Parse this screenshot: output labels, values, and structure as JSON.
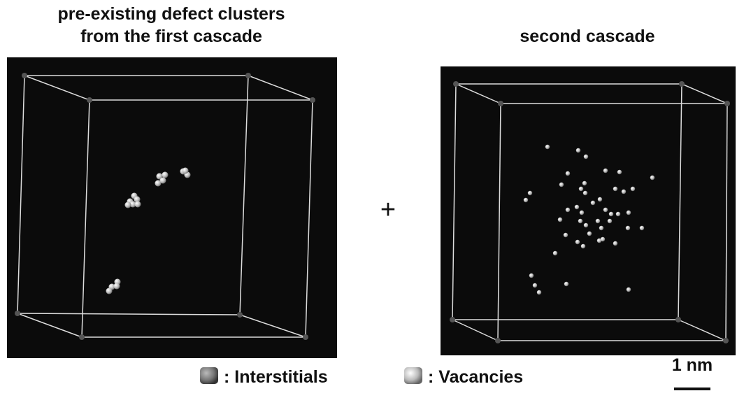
{
  "panels": [
    {
      "title": [
        "pre-existing defect clusters",
        "from the first cascade"
      ]
    },
    {
      "title": [
        "second cascade"
      ]
    }
  ],
  "operator": "+",
  "legend": [
    ": Interstitials",
    ": Vacancies"
  ],
  "scale_bar": "1 nm"
}
